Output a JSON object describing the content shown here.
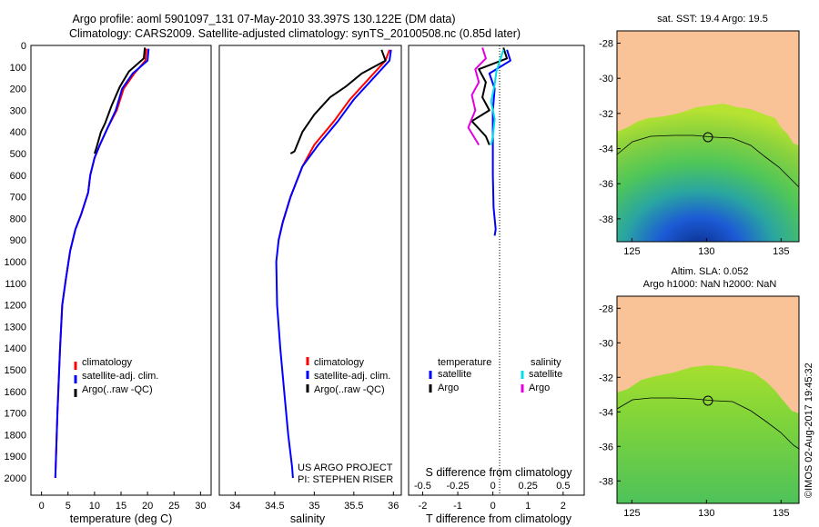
{
  "title": {
    "line1": "Argo profile: aoml 5901097_131 07-May-2010 33.397S 130.122E (DM data)",
    "line2": "Climatology: CARS2009. Satellite-adjusted climatology: synTS_20100508.nc (0.85d later)"
  },
  "colors": {
    "climatology": "#ff0000",
    "satellite": "#0000ff",
    "argo": "#000000",
    "sal_satellite": "#00e0e8",
    "sal_argo": "#e000e0",
    "land": "#f9c397",
    "ocean_warm": "#8cd23c",
    "ocean_cool": "#1c5ad6"
  },
  "depth_axis": {
    "ticks": [
      "0",
      "100",
      "200",
      "300",
      "400",
      "500",
      "600",
      "700",
      "800",
      "900",
      "1000",
      "1100",
      "1200",
      "1300",
      "1400",
      "1500",
      "1600",
      "1700",
      "1800",
      "1900",
      "2000"
    ]
  },
  "chart_data": [
    {
      "type": "line",
      "id": "temperature",
      "xlabel": "temperature (deg C)",
      "ylabel": "",
      "xlim": [
        -2,
        32
      ],
      "ylim": [
        0,
        2080
      ],
      "y_reversed": true,
      "xticks": [
        "0",
        "5",
        "10",
        "15",
        "20",
        "25",
        "30"
      ],
      "legend": [
        "climatology",
        "satellite-adj. clim.",
        "Argo(..raw -QC)"
      ],
      "legend_position": "lower-center",
      "series": [
        {
          "name": "climatology",
          "color": "climatology",
          "points": [
            [
              19.8,
              15
            ],
            [
              19.6,
              70
            ],
            [
              17.5,
              130
            ],
            [
              15.5,
              200
            ],
            [
              14.2,
              300
            ],
            [
              12.5,
              380
            ],
            [
              11.0,
              460
            ],
            [
              10.0,
              520
            ],
            [
              9.2,
              600
            ],
            [
              8.8,
              680
            ],
            [
              7.5,
              780
            ],
            [
              6.4,
              850
            ],
            [
              5.4,
              950
            ],
            [
              4.6,
              1080
            ],
            [
              3.9,
              1200
            ],
            [
              3.5,
              1400
            ],
            [
              3.0,
              1700
            ],
            [
              2.6,
              2000
            ]
          ]
        },
        {
          "name": "satellite-adj. clim.",
          "color": "satellite",
          "points": [
            [
              20.2,
              15
            ],
            [
              20.0,
              70
            ],
            [
              17.2,
              130
            ],
            [
              15.2,
              200
            ],
            [
              14.0,
              300
            ],
            [
              12.5,
              380
            ],
            [
              11.0,
              460
            ],
            [
              10.0,
              520
            ],
            [
              9.2,
              600
            ],
            [
              8.8,
              680
            ],
            [
              7.5,
              780
            ],
            [
              6.4,
              850
            ],
            [
              5.4,
              950
            ],
            [
              4.6,
              1080
            ],
            [
              3.9,
              1200
            ],
            [
              3.5,
              1400
            ],
            [
              3.0,
              1700
            ],
            [
              2.6,
              2000
            ]
          ]
        },
        {
          "name": "Argo(..raw -QC)",
          "color": "argo",
          "points": [
            [
              19.5,
              10
            ],
            [
              19.3,
              60
            ],
            [
              16.5,
              120
            ],
            [
              14.8,
              190
            ],
            [
              13.2,
              280
            ],
            [
              12.0,
              360
            ],
            [
              11.2,
              400
            ],
            [
              10.4,
              470
            ],
            [
              10.0,
              500
            ]
          ]
        }
      ]
    },
    {
      "type": "line",
      "id": "salinity",
      "xlabel": "salinity",
      "ylabel": "",
      "xlim": [
        33.8,
        36.1
      ],
      "ylim": [
        0,
        2080
      ],
      "y_reversed": true,
      "xticks": [
        "34",
        "34.5",
        "35",
        "35.5",
        "36"
      ],
      "legend": [
        "climatology",
        "satellite-adj. clim.",
        "Argo(..raw -QC)"
      ],
      "legend_position": "lower-center",
      "annotations": [
        "US ARGO PROJECT",
        "PI: STEPHEN RISER"
      ],
      "series": [
        {
          "name": "climatology",
          "color": "climatology",
          "points": [
            [
              35.95,
              20
            ],
            [
              35.9,
              70
            ],
            [
              35.7,
              150
            ],
            [
              35.45,
              250
            ],
            [
              35.25,
              350
            ],
            [
              35.0,
              460
            ],
            [
              34.85,
              560
            ],
            [
              34.7,
              700
            ],
            [
              34.6,
              820
            ],
            [
              34.55,
              900
            ]
          ]
        },
        {
          "name": "satellite-adj. clim.",
          "color": "satellite",
          "points": [
            [
              35.97,
              20
            ],
            [
              35.95,
              70
            ],
            [
              35.75,
              150
            ],
            [
              35.5,
              250
            ],
            [
              35.3,
              350
            ],
            [
              35.05,
              460
            ],
            [
              34.85,
              560
            ],
            [
              34.7,
              700
            ],
            [
              34.6,
              820
            ],
            [
              34.55,
              900
            ],
            [
              34.52,
              1000
            ],
            [
              34.53,
              1200
            ],
            [
              34.57,
              1400
            ],
            [
              34.62,
              1600
            ],
            [
              34.67,
              1800
            ],
            [
              34.72,
              1950
            ],
            [
              34.73,
              2000
            ]
          ]
        },
        {
          "name": "Argo(..raw -QC)",
          "color": "argo",
          "points": [
            [
              35.85,
              20
            ],
            [
              35.9,
              70
            ],
            [
              35.6,
              130
            ],
            [
              35.4,
              190
            ],
            [
              35.2,
              240
            ],
            [
              35.0,
              320
            ],
            [
              34.85,
              400
            ],
            [
              34.75,
              490
            ],
            [
              34.7,
              500
            ]
          ]
        }
      ]
    },
    {
      "type": "line",
      "id": "difference",
      "xlabel": "T difference from climatology",
      "x2label": "S difference from climatology",
      "xlim": [
        -2.4,
        2.6
      ],
      "ylim": [
        0,
        2080
      ],
      "y_reversed": true,
      "xticks": [
        "-2",
        "-1",
        "0",
        "1",
        "2"
      ],
      "x2ticks": [
        "-0.5",
        "-0.25",
        "0",
        "0.25",
        "0.5"
      ],
      "legend_temperature": [
        "temperature",
        "satellite",
        "Argo"
      ],
      "legend_salinity": [
        "salinity",
        "satellite",
        "Argo"
      ],
      "legend_position": "lower-center",
      "series": [
        {
          "name": "temperature satellite",
          "color": "satellite",
          "points": [
            [
              0.4,
              20
            ],
            [
              0.5,
              70
            ],
            [
              -0.1,
              130
            ],
            [
              0.05,
              200
            ],
            [
              0.0,
              300
            ],
            [
              0.0,
              450
            ],
            [
              0.0,
              600
            ],
            [
              0.02,
              750
            ],
            [
              0.08,
              850
            ],
            [
              0.05,
              880
            ]
          ]
        },
        {
          "name": "temperature Argo",
          "color": "argo",
          "points": [
            [
              0.3,
              10
            ],
            [
              0.4,
              60
            ],
            [
              -0.4,
              110
            ],
            [
              -0.2,
              170
            ],
            [
              -0.3,
              240
            ],
            [
              -0.1,
              300
            ],
            [
              -0.6,
              350
            ],
            [
              -0.2,
              420
            ],
            [
              -0.1,
              460
            ]
          ]
        },
        {
          "name": "salinity satellite",
          "color": "sal_satellite",
          "points": [
            [
              0.3,
              20
            ],
            [
              0.2,
              70
            ],
            [
              0.1,
              120
            ],
            [
              0.05,
              180
            ],
            [
              -0.05,
              260
            ],
            [
              0.05,
              340
            ],
            [
              0.0,
              420
            ],
            [
              -0.05,
              460
            ]
          ]
        },
        {
          "name": "salinity Argo",
          "color": "sal_argo",
          "points": [
            [
              -0.3,
              10
            ],
            [
              -0.2,
              60
            ],
            [
              -0.5,
              110
            ],
            [
              -0.4,
              170
            ],
            [
              -0.6,
              230
            ],
            [
              -0.5,
              300
            ],
            [
              -0.7,
              380
            ],
            [
              -0.4,
              460
            ]
          ]
        }
      ]
    }
  ],
  "maps": [
    {
      "id": "sst-map",
      "title": "sat. SST: 19.4 Argo: 19.5",
      "lon_ticks": [
        "125",
        "130",
        "135"
      ],
      "lat_ticks": [
        "-28",
        "-30",
        "-32",
        "-34",
        "-36",
        "-38"
      ],
      "lon_range": [
        124,
        136.2
      ],
      "lat_range": [
        -39.3,
        -27.3
      ],
      "float_position": [
        130.122,
        -33.397
      ]
    },
    {
      "id": "sla-map",
      "title": "Altim. SLA: 0.052",
      "subtitle": "Argo h1000: NaN h2000: NaN",
      "lon_ticks": [
        "125",
        "130",
        "135"
      ],
      "lat_ticks": [
        "-28",
        "-30",
        "-32",
        "-34",
        "-36",
        "-38"
      ],
      "lon_range": [
        124,
        136.2
      ],
      "lat_range": [
        -39.3,
        -27.3
      ],
      "float_position": [
        130.122,
        -33.397
      ]
    }
  ],
  "credit": "©IMOS 02-Aug-2017 19:45:32"
}
